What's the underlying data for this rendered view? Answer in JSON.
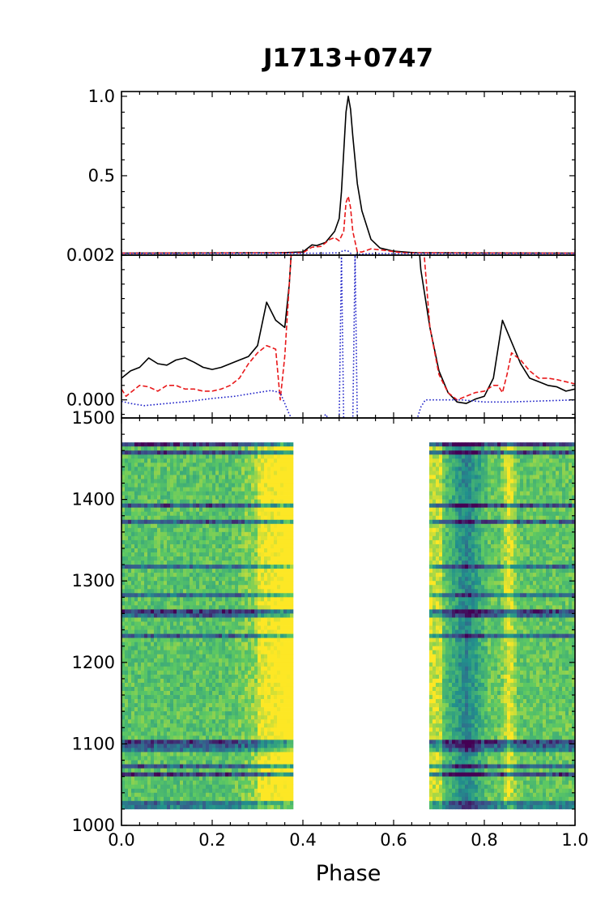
{
  "chart_data": {
    "type": "line",
    "title": "J1713+0747",
    "xlabel": "Phase",
    "xlim": [
      0.0,
      1.0
    ],
    "x_ticks": [
      "0.0",
      "0.2",
      "0.4",
      "0.6",
      "0.8",
      "1.0"
    ],
    "x_tick_values": [
      0.0,
      0.2,
      0.4,
      0.6,
      0.8,
      1.0
    ],
    "colors": {
      "total": "#000000",
      "linear": "#e8181a",
      "circular": "#1f22c8"
    },
    "panels": [
      {
        "id": "profile",
        "ylim": [
          0.0,
          1.03
        ],
        "y_ticks": [
          "1.0",
          "0.5"
        ],
        "y_tick_values": [
          1.0,
          0.5
        ],
        "series": [
          {
            "style": "solid",
            "color": "#000000",
            "x": [
              0.0,
              0.35,
              0.4,
              0.42,
              0.43,
              0.45,
              0.47,
              0.48,
              0.485,
              0.49,
              0.495,
              0.5,
              0.505,
              0.51,
              0.52,
              0.53,
              0.55,
              0.57,
              0.6,
              0.65,
              1.0
            ],
            "y": [
              0.012,
              0.015,
              0.02,
              0.065,
              0.06,
              0.08,
              0.15,
              0.23,
              0.4,
              0.65,
              0.9,
              1.0,
              0.92,
              0.75,
              0.45,
              0.28,
              0.1,
              0.045,
              0.025,
              0.015,
              0.012
            ]
          },
          {
            "style": "dashed",
            "color": "#e8181a",
            "x": [
              0.0,
              0.4,
              0.42,
              0.44,
              0.46,
              0.47,
              0.48,
              0.49,
              0.495,
              0.5,
              0.505,
              0.51,
              0.52,
              0.53,
              0.55,
              0.58,
              0.62,
              1.0
            ],
            "y": [
              0.012,
              0.015,
              0.05,
              0.055,
              0.1,
              0.11,
              0.09,
              0.15,
              0.33,
              0.37,
              0.3,
              0.15,
              0.02,
              0.02,
              0.04,
              0.03,
              0.015,
              0.012
            ]
          },
          {
            "style": "dotted",
            "color": "#1f22c8",
            "x": [
              0.0,
              0.45,
              0.48,
              0.49,
              0.5,
              0.51,
              0.52,
              0.55,
              1.0
            ],
            "y": [
              0.01,
              0.012,
              0.015,
              0.03,
              0.025,
              0.0,
              0.005,
              0.01,
              0.01
            ]
          }
        ]
      },
      {
        "id": "zoom",
        "ylim": [
          -0.00025,
          0.002
        ],
        "y_ticks": [
          "0.002",
          "0.000"
        ],
        "y_tick_values": [
          0.002,
          0.0
        ],
        "series": [
          {
            "style": "solid",
            "color": "#000000",
            "x": [
              0.0,
              0.02,
              0.04,
              0.06,
              0.08,
              0.1,
              0.12,
              0.14,
              0.16,
              0.18,
              0.2,
              0.22,
              0.24,
              0.26,
              0.28,
              0.3,
              0.32,
              0.34,
              0.36,
              0.37,
              0.38,
              0.65,
              0.66,
              0.68,
              0.7,
              0.72,
              0.74,
              0.76,
              0.78,
              0.8,
              0.82,
              0.84,
              0.86,
              0.88,
              0.9,
              0.92,
              0.94,
              0.96,
              0.98,
              1.0
            ],
            "y": [
              0.0003,
              0.0004,
              0.00045,
              0.00058,
              0.0005,
              0.00048,
              0.00055,
              0.00058,
              0.00052,
              0.00045,
              0.00042,
              0.00045,
              0.0005,
              0.00055,
              0.0006,
              0.00075,
              0.00135,
              0.0011,
              0.001,
              0.0016,
              0.0026,
              0.0026,
              0.0018,
              0.001,
              0.0004,
              0.0001,
              -3e-05,
              -5e-05,
              1e-05,
              5e-05,
              0.0003,
              0.0011,
              0.0008,
              0.0005,
              0.0003,
              0.00025,
              0.0002,
              0.00018,
              0.00012,
              0.00015
            ]
          },
          {
            "style": "dashed",
            "color": "#e8181a",
            "x": [
              0.0,
              0.01,
              0.02,
              0.04,
              0.06,
              0.08,
              0.1,
              0.12,
              0.14,
              0.16,
              0.18,
              0.2,
              0.22,
              0.24,
              0.26,
              0.28,
              0.3,
              0.32,
              0.34,
              0.35,
              0.36,
              0.38,
              0.66,
              0.68,
              0.7,
              0.72,
              0.74,
              0.76,
              0.78,
              0.8,
              0.82,
              0.83,
              0.84,
              0.85,
              0.86,
              0.88,
              0.9,
              0.92,
              0.94,
              0.96,
              0.98,
              1.0
            ],
            "y": [
              0.00015,
              5e-05,
              0.0001,
              0.0002,
              0.00018,
              0.00012,
              0.0002,
              0.0002,
              0.00015,
              0.00015,
              0.00012,
              0.00012,
              0.00015,
              0.0002,
              0.0003,
              0.0005,
              0.00065,
              0.00075,
              0.0007,
              0.0,
              0.0006,
              0.0026,
              0.0026,
              0.001,
              0.00035,
              0.0001,
              0.0,
              5e-05,
              0.0001,
              0.00012,
              0.0002,
              0.0002,
              0.0001,
              0.00035,
              0.00065,
              0.00055,
              0.0004,
              0.0003,
              0.0003,
              0.00028,
              0.00025,
              0.00022
            ]
          },
          {
            "style": "dotted",
            "color": "#1f22c8",
            "x": [
              0.0,
              0.02,
              0.05,
              0.1,
              0.15,
              0.2,
              0.25,
              0.3,
              0.33,
              0.35,
              0.36,
              0.37,
              0.38,
              0.44,
              0.45,
              0.46,
              0.48,
              0.485,
              0.49,
              0.51,
              0.515,
              0.52,
              0.65,
              0.66,
              0.67,
              0.7,
              0.75,
              0.8,
              0.85,
              0.9,
              0.95,
              1.0
            ],
            "y": [
              -2e-05,
              -5e-05,
              -8e-05,
              -5e-05,
              -2e-05,
              2e-05,
              5e-05,
              0.0001,
              0.00013,
              0.0001,
              -5e-05,
              -0.0002,
              -0.0003,
              -0.0003,
              -0.0002,
              -0.0003,
              -0.0003,
              0.002,
              -0.0003,
              -0.0003,
              0.002,
              -0.0003,
              -0.0003,
              -0.0001,
              0.0,
              0.0,
              0.0,
              -3e-05,
              -3e-05,
              -2e-05,
              -1e-05,
              0.0
            ]
          }
        ]
      },
      {
        "id": "frequency",
        "type": "heatmap",
        "ylim": [
          1000,
          1500
        ],
        "y_ticks": [
          "1000",
          "1100",
          "1200",
          "1300",
          "1400",
          "1500"
        ],
        "y_tick_values": [
          1000,
          1100,
          1200,
          1300,
          1400,
          1500
        ],
        "data_ylim": [
          1020,
          1470
        ],
        "masked_phase_range": [
          0.382,
          0.678
        ],
        "colormap": "viridis"
      }
    ]
  }
}
